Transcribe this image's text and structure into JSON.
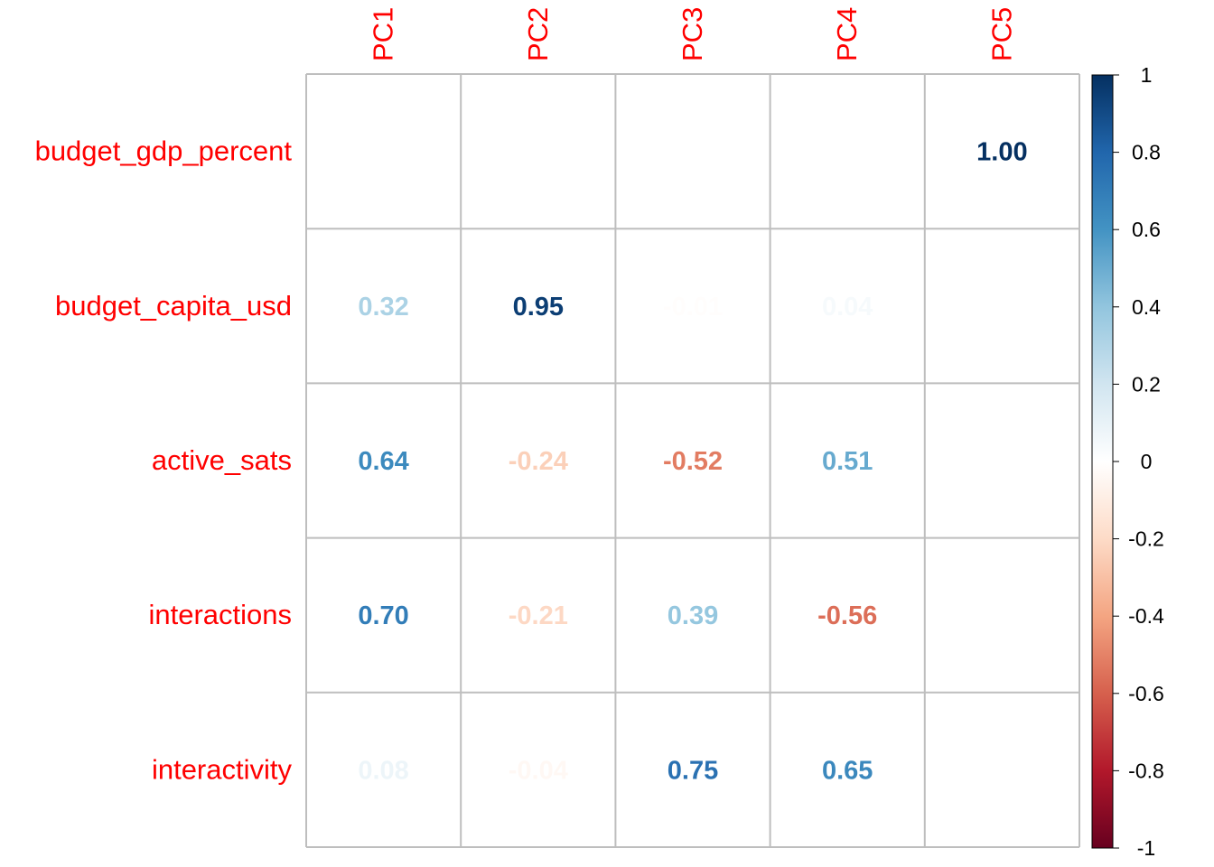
{
  "chart_data": {
    "type": "heatmap",
    "title": "",
    "columns": [
      "PC1",
      "PC2",
      "PC3",
      "PC4",
      "PC5"
    ],
    "rows": [
      "budget_gdp_percent",
      "budget_capita_usd",
      "active_sats",
      "interactions",
      "interactivity"
    ],
    "values": [
      [
        0.0,
        0.0,
        0.0,
        0.0,
        1.0
      ],
      [
        0.32,
        0.95,
        -0.01,
        0.04,
        0.0
      ],
      [
        0.64,
        -0.24,
        -0.52,
        0.51,
        0.0
      ],
      [
        0.7,
        -0.21,
        0.39,
        -0.56,
        0.0
      ],
      [
        0.08,
        -0.04,
        0.75,
        0.65,
        0.0
      ]
    ],
    "labels": [
      [
        "0.00",
        "0.00",
        "0.00",
        "0.00",
        "1.00"
      ],
      [
        "0.32",
        "0.95",
        "-0.01",
        "0.04",
        "0.00"
      ],
      [
        "0.64",
        "-0.24",
        "-0.52",
        "0.51",
        "0.00"
      ],
      [
        "0.70",
        "-0.21",
        "0.39",
        "-0.56",
        "0.00"
      ],
      [
        "0.08",
        "-0.04",
        "0.75",
        "0.65",
        "0.00"
      ]
    ],
    "colorbar": {
      "range": [
        -1,
        1
      ],
      "ticks": [
        "1",
        "0.8",
        "0.6",
        "0.4",
        "0.2",
        "0",
        "-0.2",
        "-0.4",
        "-0.6",
        "-0.8",
        "-1"
      ]
    },
    "colors": {
      "label": "#ff0000",
      "grid": "#bebebe",
      "scale": [
        "#67001f",
        "#b2182b",
        "#d6604d",
        "#f4a582",
        "#fddbc7",
        "#ffffff",
        "#d1e5f0",
        "#92c5de",
        "#4393c3",
        "#2166ac",
        "#053061"
      ]
    }
  }
}
